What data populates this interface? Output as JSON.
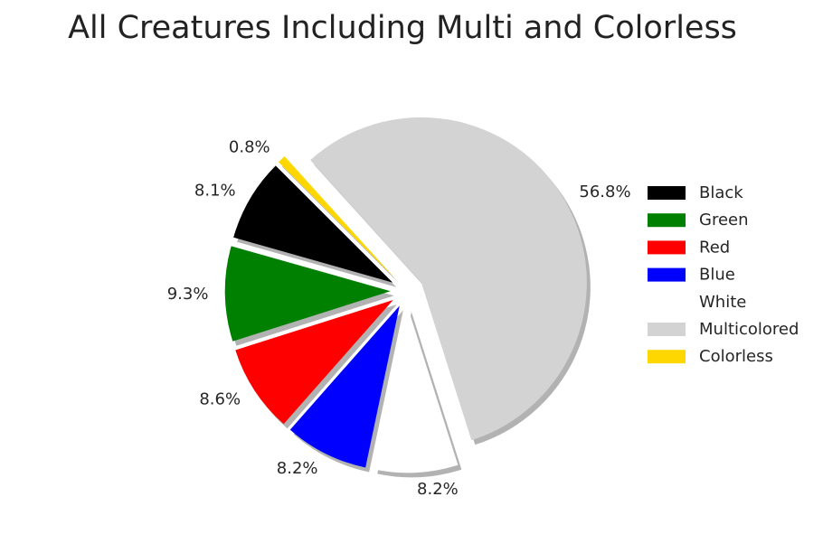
{
  "chart_data": {
    "type": "pie",
    "title": "All Creatures Including Multi and Colorless",
    "start_angle_deg": 135,
    "direction": "counterclockwise",
    "exploded": true,
    "shadow": true,
    "legend_position": "right",
    "slices": [
      {
        "name": "Black",
        "value": 8.1,
        "label": "8.1%",
        "color": "#000000"
      },
      {
        "name": "Green",
        "value": 9.3,
        "label": "9.3%",
        "color": "#008000"
      },
      {
        "name": "Red",
        "value": 8.6,
        "label": "8.6%",
        "color": "#ff0000"
      },
      {
        "name": "Blue",
        "value": 8.2,
        "label": "8.2%",
        "color": "#0000ff"
      },
      {
        "name": "White",
        "value": 8.2,
        "label": "8.2%",
        "color": "#ffffff"
      },
      {
        "name": "Multicolored",
        "value": 56.8,
        "label": "56.8%",
        "color": "#d3d3d3"
      },
      {
        "name": "Colorless",
        "value": 0.8,
        "label": "0.8%",
        "color": "#ffd700"
      }
    ]
  }
}
